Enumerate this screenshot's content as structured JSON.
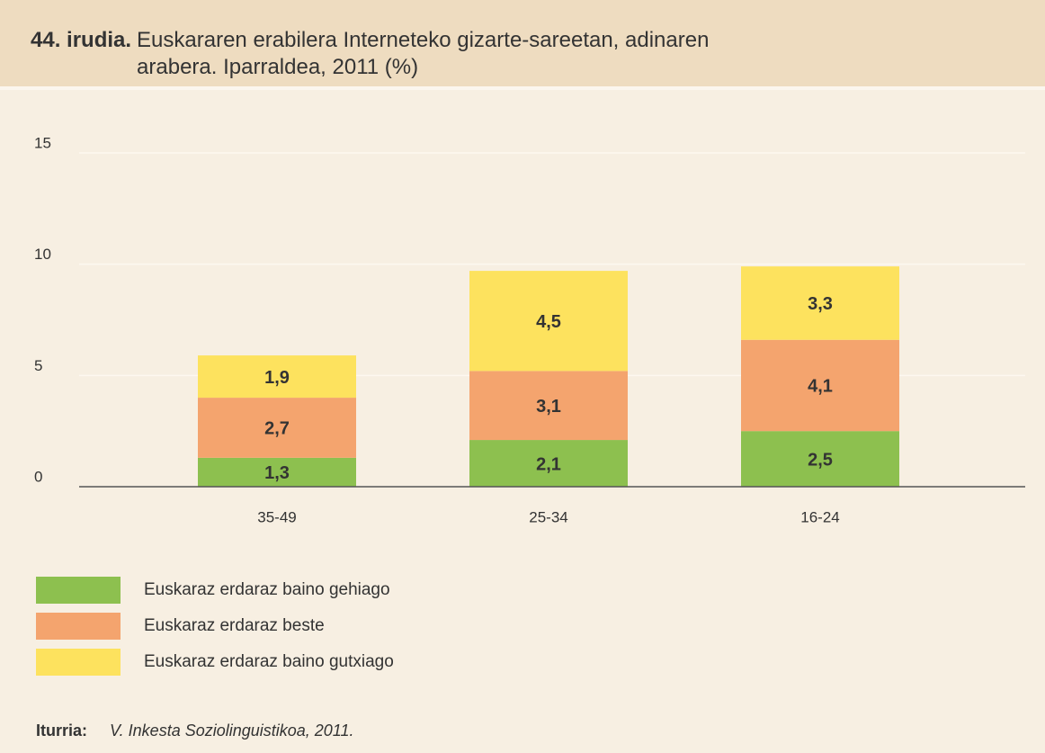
{
  "chart_data": {
    "type": "stacked_bar",
    "title_label": "44. irudia.",
    "title": "Euskararen erabilera Interneteko gizarte-sareetan, adinaren arabera. Iparraldea, 2011 (%)",
    "source_label": "Iturria:",
    "source": "V. Inkesta Soziolinguistikoa, 2011.",
    "categories": [
      "35-49",
      "25-34",
      "16-24"
    ],
    "series": [
      {
        "name": "Euskaraz erdaraz baino gehiago",
        "color": "#8dc04f",
        "values": [
          1.3,
          2.1,
          2.5
        ],
        "value_labels": [
          "1,3",
          "2,1",
          "2,5"
        ]
      },
      {
        "name": "Euskaraz erdaraz beste",
        "color": "#f4a46e",
        "values": [
          2.7,
          3.1,
          4.1
        ],
        "value_labels": [
          "2,7",
          "3,1",
          "4,1"
        ]
      },
      {
        "name": "Euskaraz erdaraz baino gutxiago",
        "color": "#fde25e",
        "values": [
          1.9,
          4.5,
          3.3
        ],
        "value_labels": [
          "1,9",
          "4,5",
          "3,3"
        ]
      }
    ],
    "ylim": [
      0,
      15
    ],
    "yticks": [
      0,
      5,
      10,
      15
    ],
    "grid": true
  }
}
